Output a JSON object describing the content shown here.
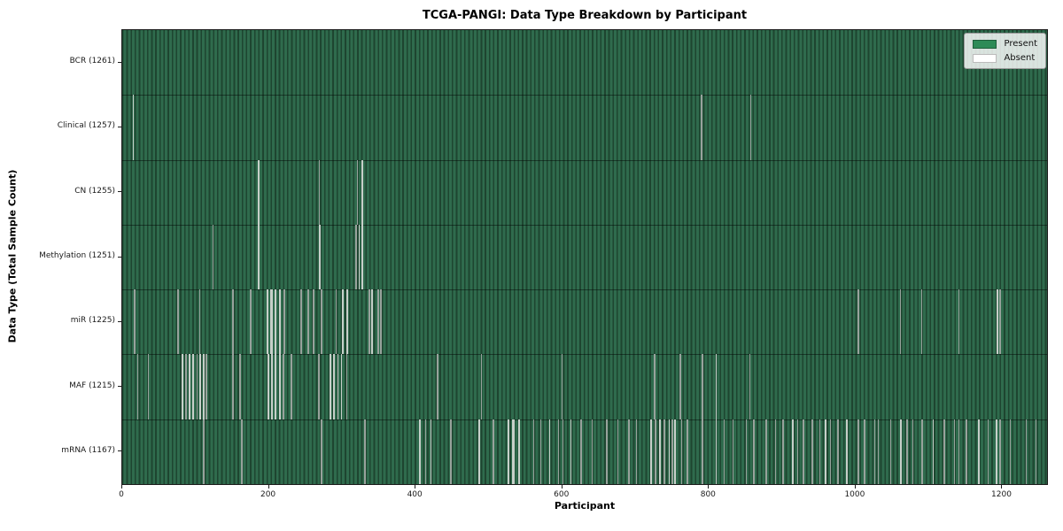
{
  "chart_data": {
    "type": "heatmap",
    "title": "TCGA-PANGI: Data Type Breakdown by Participant",
    "xlabel": "Participant",
    "ylabel": "Data Type (Total Sample Count)",
    "xlim": [
      0,
      1261
    ],
    "xticks": [
      0,
      200,
      400,
      600,
      800,
      1000,
      1200
    ],
    "grid": false,
    "legend": {
      "position": "upper-right",
      "entries": [
        {
          "label": "Present",
          "color": "#2e8b57"
        },
        {
          "label": "Absent",
          "color": "#ffffff"
        }
      ]
    },
    "colors": {
      "present": "#2e8b57",
      "present_fill": "#2f6b4d",
      "bar_edge": "#1e4530",
      "absent_stripe_single": "#98a29c",
      "absent_stripe_wide": "#c7cfc9",
      "background": "#ffffff"
    },
    "rows": [
      {
        "label": "BCR (1261)",
        "data_type": "BCR",
        "total_samples": 1261,
        "absent_runs": []
      },
      {
        "label": "Clinical (1257)",
        "data_type": "Clinical",
        "total_samples": 1257,
        "absent_runs": [
          [
            14,
            2
          ],
          [
            789,
            1
          ],
          [
            856,
            1
          ]
        ]
      },
      {
        "label": "CN (1255)",
        "data_type": "CN",
        "total_samples": 1255,
        "absent_runs": [
          [
            185,
            2
          ],
          [
            268,
            1
          ],
          [
            320,
            1
          ],
          [
            326,
            2
          ]
        ]
      },
      {
        "label": "Methylation (1251)",
        "data_type": "Methylation",
        "total_samples": 1251,
        "absent_runs": [
          [
            123,
            1
          ],
          [
            185,
            2
          ],
          [
            268,
            2
          ],
          [
            318,
            1
          ],
          [
            322,
            2
          ],
          [
            326,
            2
          ]
        ]
      },
      {
        "label": "miR (1225)",
        "data_type": "miR",
        "total_samples": 1225,
        "absent_runs": [
          [
            16,
            1
          ],
          [
            75,
            1
          ],
          [
            105,
            1
          ],
          [
            150,
            1
          ],
          [
            174,
            1
          ],
          [
            197,
            2
          ],
          [
            202,
            3
          ],
          [
            208,
            2
          ],
          [
            214,
            2
          ],
          [
            220,
            1
          ],
          [
            243,
            1
          ],
          [
            253,
            1
          ],
          [
            260,
            1
          ],
          [
            271,
            1
          ],
          [
            291,
            1
          ],
          [
            300,
            2
          ],
          [
            306,
            2
          ],
          [
            336,
            1
          ],
          [
            340,
            2
          ],
          [
            348,
            1
          ],
          [
            352,
            1
          ],
          [
            1003,
            1
          ],
          [
            1060,
            1
          ],
          [
            1089,
            1
          ],
          [
            1140,
            1
          ],
          [
            1192,
            2
          ],
          [
            1196,
            1
          ]
        ]
      },
      {
        "label": "MAF (1215)",
        "data_type": "MAF",
        "total_samples": 1215,
        "absent_runs": [
          [
            20,
            1
          ],
          [
            35,
            1
          ],
          [
            81,
            2
          ],
          [
            86,
            1
          ],
          [
            91,
            2
          ],
          [
            96,
            2
          ],
          [
            101,
            1
          ],
          [
            105,
            2
          ],
          [
            110,
            2
          ],
          [
            114,
            1
          ],
          [
            150,
            1
          ],
          [
            160,
            1
          ],
          [
            198,
            2
          ],
          [
            203,
            2
          ],
          [
            208,
            2
          ],
          [
            214,
            2
          ],
          [
            219,
            1
          ],
          [
            230,
            1
          ],
          [
            267,
            1
          ],
          [
            283,
            2
          ],
          [
            288,
            2
          ],
          [
            293,
            2
          ],
          [
            298,
            2
          ],
          [
            305,
            1
          ],
          [
            429,
            1
          ],
          [
            489,
            1
          ],
          [
            599,
            1
          ],
          [
            725,
            1
          ],
          [
            760,
            1
          ],
          [
            790,
            1
          ],
          [
            809,
            2
          ],
          [
            855,
            1
          ]
        ]
      },
      {
        "label": "mRNA (1167)",
        "data_type": "mRNA",
        "total_samples": 1167,
        "absent_runs": [
          [
            110,
            1
          ],
          [
            162,
            1
          ],
          [
            271,
            1
          ],
          [
            330,
            1
          ],
          [
            405,
            2
          ],
          [
            413,
            1
          ],
          [
            420,
            2
          ],
          [
            447,
            1
          ],
          [
            486,
            2
          ],
          [
            505,
            1
          ],
          [
            526,
            2
          ],
          [
            532,
            3
          ],
          [
            540,
            2
          ],
          [
            560,
            1
          ],
          [
            570,
            1
          ],
          [
            582,
            2
          ],
          [
            594,
            1
          ],
          [
            600,
            1
          ],
          [
            611,
            2
          ],
          [
            625,
            1
          ],
          [
            640,
            1
          ],
          [
            660,
            1
          ],
          [
            675,
            1
          ],
          [
            690,
            1
          ],
          [
            700,
            1
          ],
          [
            720,
            2
          ],
          [
            726,
            1
          ],
          [
            732,
            2
          ],
          [
            738,
            1
          ],
          [
            745,
            2
          ],
          [
            749,
            1
          ],
          [
            753,
            2
          ],
          [
            762,
            1
          ],
          [
            770,
            1
          ],
          [
            790,
            1
          ],
          [
            809,
            2
          ],
          [
            820,
            1
          ],
          [
            832,
            1
          ],
          [
            850,
            1
          ],
          [
            860,
            1
          ],
          [
            877,
            1
          ],
          [
            890,
            1
          ],
          [
            900,
            1
          ],
          [
            913,
            2
          ],
          [
            920,
            1
          ],
          [
            928,
            1
          ],
          [
            940,
            1
          ],
          [
            950,
            1
          ],
          [
            958,
            2
          ],
          [
            965,
            1
          ],
          [
            975,
            1
          ],
          [
            987,
            2
          ],
          [
            1003,
            1
          ],
          [
            1011,
            1
          ],
          [
            1025,
            1
          ],
          [
            1030,
            1
          ],
          [
            1047,
            1
          ],
          [
            1061,
            2
          ],
          [
            1069,
            1
          ],
          [
            1077,
            1
          ],
          [
            1090,
            1
          ],
          [
            1105,
            2
          ],
          [
            1120,
            1
          ],
          [
            1134,
            1
          ],
          [
            1140,
            1
          ],
          [
            1150,
            1
          ],
          [
            1167,
            2
          ],
          [
            1180,
            1
          ],
          [
            1191,
            2
          ],
          [
            1196,
            1
          ],
          [
            1210,
            1
          ],
          [
            1232,
            1
          ],
          [
            1245,
            1
          ]
        ]
      }
    ]
  }
}
